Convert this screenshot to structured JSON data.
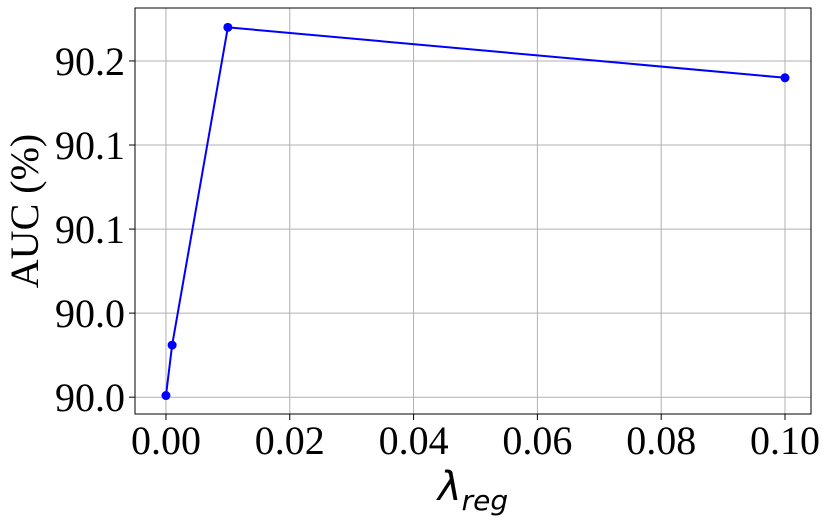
{
  "chart_data": {
    "type": "line",
    "ylabel": "AUC (%)",
    "xlabel": "λ",
    "xlabel_sub": "reg",
    "x": [
      0,
      0.001,
      0.01,
      0.1
    ],
    "series": [
      {
        "color": "#0000ff",
        "values": [
          90.001,
          90.031,
          90.22,
          90.19
        ]
      }
    ],
    "xlim": [
      -0.005,
      0.1042
    ],
    "ylim": [
      89.99,
      90.2315
    ],
    "xticks": [
      {
        "value": 0,
        "label": "0.00"
      },
      {
        "value": 0.02,
        "label": "0.02"
      },
      {
        "value": 0.04,
        "label": "0.04"
      },
      {
        "value": 0.06,
        "label": "0.06"
      },
      {
        "value": 0.08,
        "label": "0.08"
      },
      {
        "value": 0.1,
        "label": "0.10"
      }
    ],
    "yticks": [
      {
        "value": 90,
        "label": "90.0"
      },
      {
        "value": 90.05,
        "label": "90.0"
      },
      {
        "value": 90.1,
        "label": "90.1"
      },
      {
        "value": 90.15,
        "label": "90.1"
      },
      {
        "value": 90.2,
        "label": "90.2"
      }
    ],
    "grid": true
  }
}
